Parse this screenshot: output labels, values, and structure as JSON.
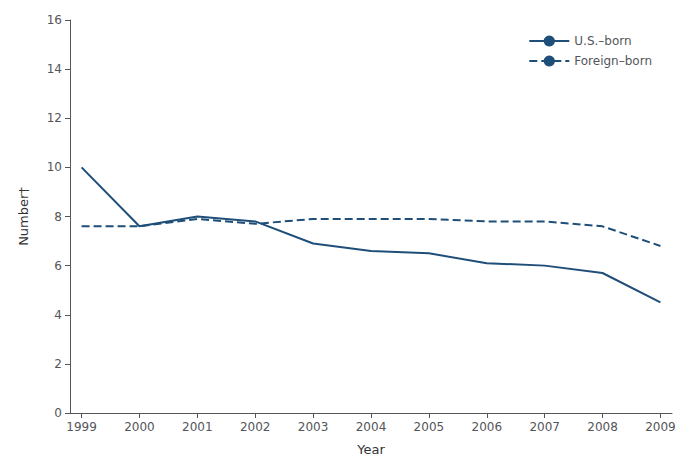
{
  "chart_data": {
    "type": "line",
    "x": [
      1999,
      2000,
      2001,
      2002,
      2003,
      2004,
      2005,
      2006,
      2007,
      2008,
      2009
    ],
    "series": [
      {
        "name": "U.S.–born",
        "color": "#1f4e79",
        "line_style": "solid",
        "values": [
          10.0,
          7.6,
          8.0,
          7.8,
          6.9,
          6.6,
          6.5,
          6.1,
          6.0,
          5.7,
          4.5
        ]
      },
      {
        "name": "Foreign–born",
        "color": "#1f4e79",
        "line_style": "dashed",
        "values": [
          7.6,
          7.6,
          7.9,
          7.7,
          7.9,
          7.9,
          7.9,
          7.8,
          7.8,
          7.6,
          6.8
        ]
      }
    ],
    "xlabel": "Year",
    "ylabel": "Number†",
    "xlim": [
      1998.8,
      2009.2
    ],
    "xticks": [
      1999,
      2000,
      2001,
      2002,
      2003,
      2004,
      2005,
      2006,
      2007,
      2008,
      2009
    ],
    "ylim": [
      0,
      16
    ],
    "yticks": [
      0,
      2,
      4,
      6,
      8,
      10,
      12,
      14,
      16
    ],
    "grid": false,
    "legend": "upper right"
  }
}
